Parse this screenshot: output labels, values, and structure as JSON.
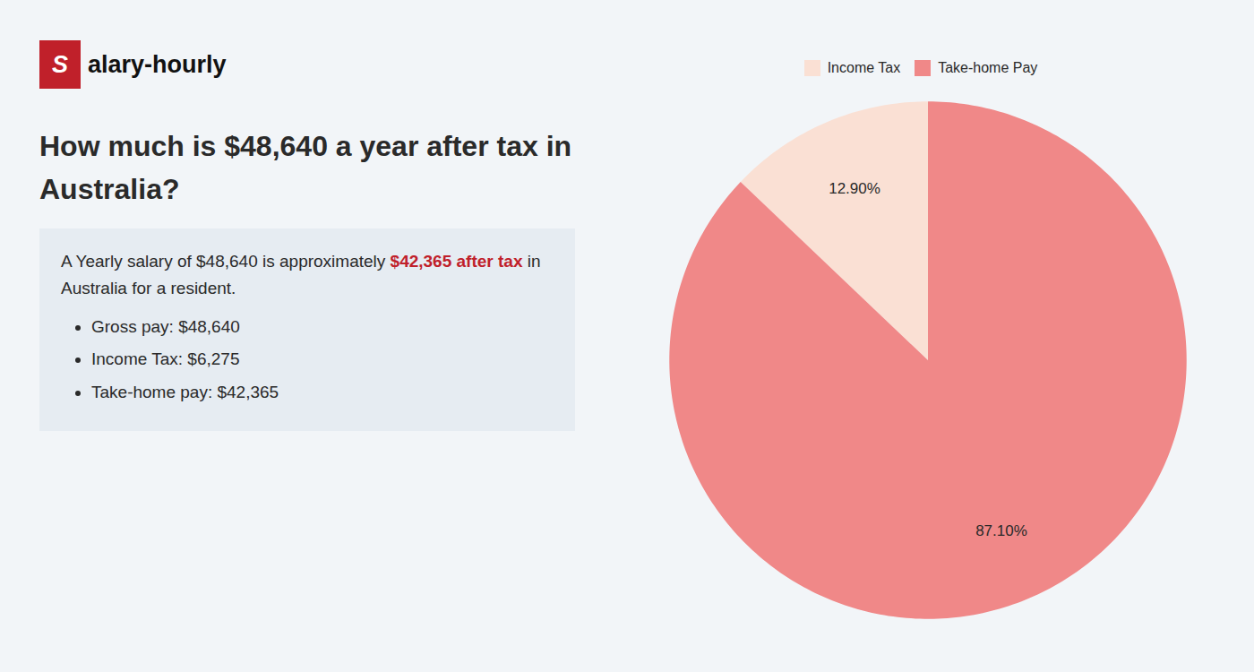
{
  "chart_data": {
    "type": "pie",
    "title": "How much is $48,640 a year after tax in Australia?",
    "annotations": [
      "Salary-hourly",
      [
        {
          "text": "A Yearly salary of $48,640 is approximately "
        },
        {
          "text": "$42,365 after tax",
          "color": "#c0202a"
        },
        {
          "text": " in Australia for a resident."
        }
      ],
      "Gross pay: $48,640",
      "Income Tax: $6,275",
      "Take-home pay: $42,365"
    ],
    "categories": [
      "Income Tax",
      "Take-home Pay"
    ],
    "values": [
      12.9,
      87.1
    ],
    "value_labels": [
      "12.90%",
      "87.10%"
    ],
    "colors": [
      "#fae0d4",
      "#f08888"
    ],
    "data_labels": true,
    "legend": "top"
  }
}
